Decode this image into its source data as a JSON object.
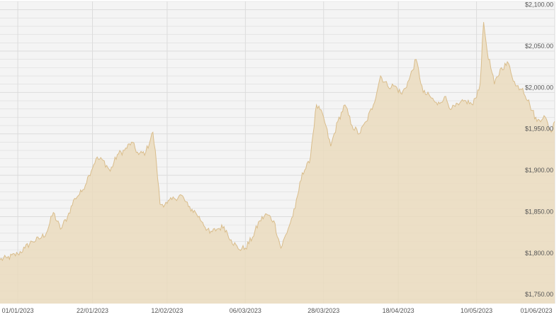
{
  "chart_data": {
    "type": "area",
    "x_ticks": [
      "01/01/2023",
      "22/01/2023",
      "12/02/2023",
      "06/03/2023",
      "28/03/2023",
      "18/04/2023",
      "10/05/2023",
      "01/06/2023"
    ],
    "y_ticks": [
      "$1,750.00",
      "$1,800.00",
      "$1,850.00",
      "$1,900.00",
      "$1,950.00",
      "$2,000.00",
      "$2,050.00",
      "$2,100.00"
    ],
    "y_tick_values": [
      1750,
      1800,
      1850,
      1900,
      1950,
      2000,
      2050,
      2100
    ],
    "ylim": [
      1745,
      2110
    ],
    "x_start": "2022-12-27",
    "x_end": "2023-06-01",
    "grid": true,
    "colors": {
      "fill": "#eadbbd",
      "stroke": "#d9bd8c",
      "plot_bg": "#f4f4f4",
      "grid": "#dcdcdc"
    },
    "series": [
      {
        "values": [
          [
            "2022-12-27",
            1798
          ],
          [
            "2022-12-29",
            1800
          ],
          [
            "2023-01-01",
            1805
          ],
          [
            "2023-01-03",
            1812
          ],
          [
            "2023-01-05",
            1820
          ],
          [
            "2023-01-07",
            1823
          ],
          [
            "2023-01-09",
            1830
          ],
          [
            "2023-01-11",
            1855
          ],
          [
            "2023-01-13",
            1835
          ],
          [
            "2023-01-15",
            1850
          ],
          [
            "2023-01-17",
            1872
          ],
          [
            "2023-01-19",
            1880
          ],
          [
            "2023-01-21",
            1900
          ],
          [
            "2023-01-23",
            1920
          ],
          [
            "2023-01-25",
            1918
          ],
          [
            "2023-01-27",
            1905
          ],
          [
            "2023-01-29",
            1925
          ],
          [
            "2023-01-31",
            1930
          ],
          [
            "2023-02-02",
            1940
          ],
          [
            "2023-02-04",
            1925
          ],
          [
            "2023-02-06",
            1928
          ],
          [
            "2023-02-08",
            1952
          ],
          [
            "2023-02-09",
            1915
          ],
          [
            "2023-02-10",
            1865
          ],
          [
            "2023-02-12",
            1866
          ],
          [
            "2023-02-14",
            1872
          ],
          [
            "2023-02-16",
            1876
          ],
          [
            "2023-02-18",
            1862
          ],
          [
            "2023-02-20",
            1855
          ],
          [
            "2023-02-22",
            1843
          ],
          [
            "2023-02-24",
            1830
          ],
          [
            "2023-02-26",
            1835
          ],
          [
            "2023-02-28",
            1838
          ],
          [
            "2023-03-02",
            1822
          ],
          [
            "2023-03-04",
            1811
          ],
          [
            "2023-03-06",
            1812
          ],
          [
            "2023-03-08",
            1825
          ],
          [
            "2023-03-10",
            1845
          ],
          [
            "2023-03-12",
            1853
          ],
          [
            "2023-03-14",
            1845
          ],
          [
            "2023-03-16",
            1812
          ],
          [
            "2023-03-18",
            1835
          ],
          [
            "2023-03-20",
            1860
          ],
          [
            "2023-03-22",
            1903
          ],
          [
            "2023-03-24",
            1915
          ],
          [
            "2023-03-26",
            1985
          ],
          [
            "2023-03-28",
            1970
          ],
          [
            "2023-03-30",
            1935
          ],
          [
            "2023-04-01",
            1965
          ],
          [
            "2023-04-03",
            1985
          ],
          [
            "2023-04-05",
            1960
          ],
          [
            "2023-04-07",
            1950
          ],
          [
            "2023-04-09",
            1965
          ],
          [
            "2023-04-11",
            1985
          ],
          [
            "2023-04-13",
            2020
          ],
          [
            "2023-04-15",
            2008
          ],
          [
            "2023-04-17",
            2008
          ],
          [
            "2023-04-19",
            1998
          ],
          [
            "2023-04-21",
            2015
          ],
          [
            "2023-04-23",
            2040
          ],
          [
            "2023-04-25",
            2000
          ],
          [
            "2023-04-27",
            1995
          ],
          [
            "2023-04-29",
            1985
          ],
          [
            "2023-05-01",
            1995
          ],
          [
            "2023-05-03",
            1980
          ],
          [
            "2023-05-05",
            1985
          ],
          [
            "2023-05-07",
            1990
          ],
          [
            "2023-05-09",
            1985
          ],
          [
            "2023-05-11",
            2010
          ],
          [
            "2023-05-12",
            2085
          ],
          [
            "2023-05-13",
            2050
          ],
          [
            "2023-05-15",
            2010
          ],
          [
            "2023-05-17",
            2030
          ],
          [
            "2023-05-19",
            2035
          ],
          [
            "2023-05-21",
            2008
          ],
          [
            "2023-05-23",
            2005
          ],
          [
            "2023-05-25",
            1985
          ],
          [
            "2023-05-27",
            1965
          ],
          [
            "2023-05-29",
            1972
          ],
          [
            "2023-05-31",
            1952
          ],
          [
            "2023-06-01",
            1965
          ]
        ]
      }
    ]
  }
}
